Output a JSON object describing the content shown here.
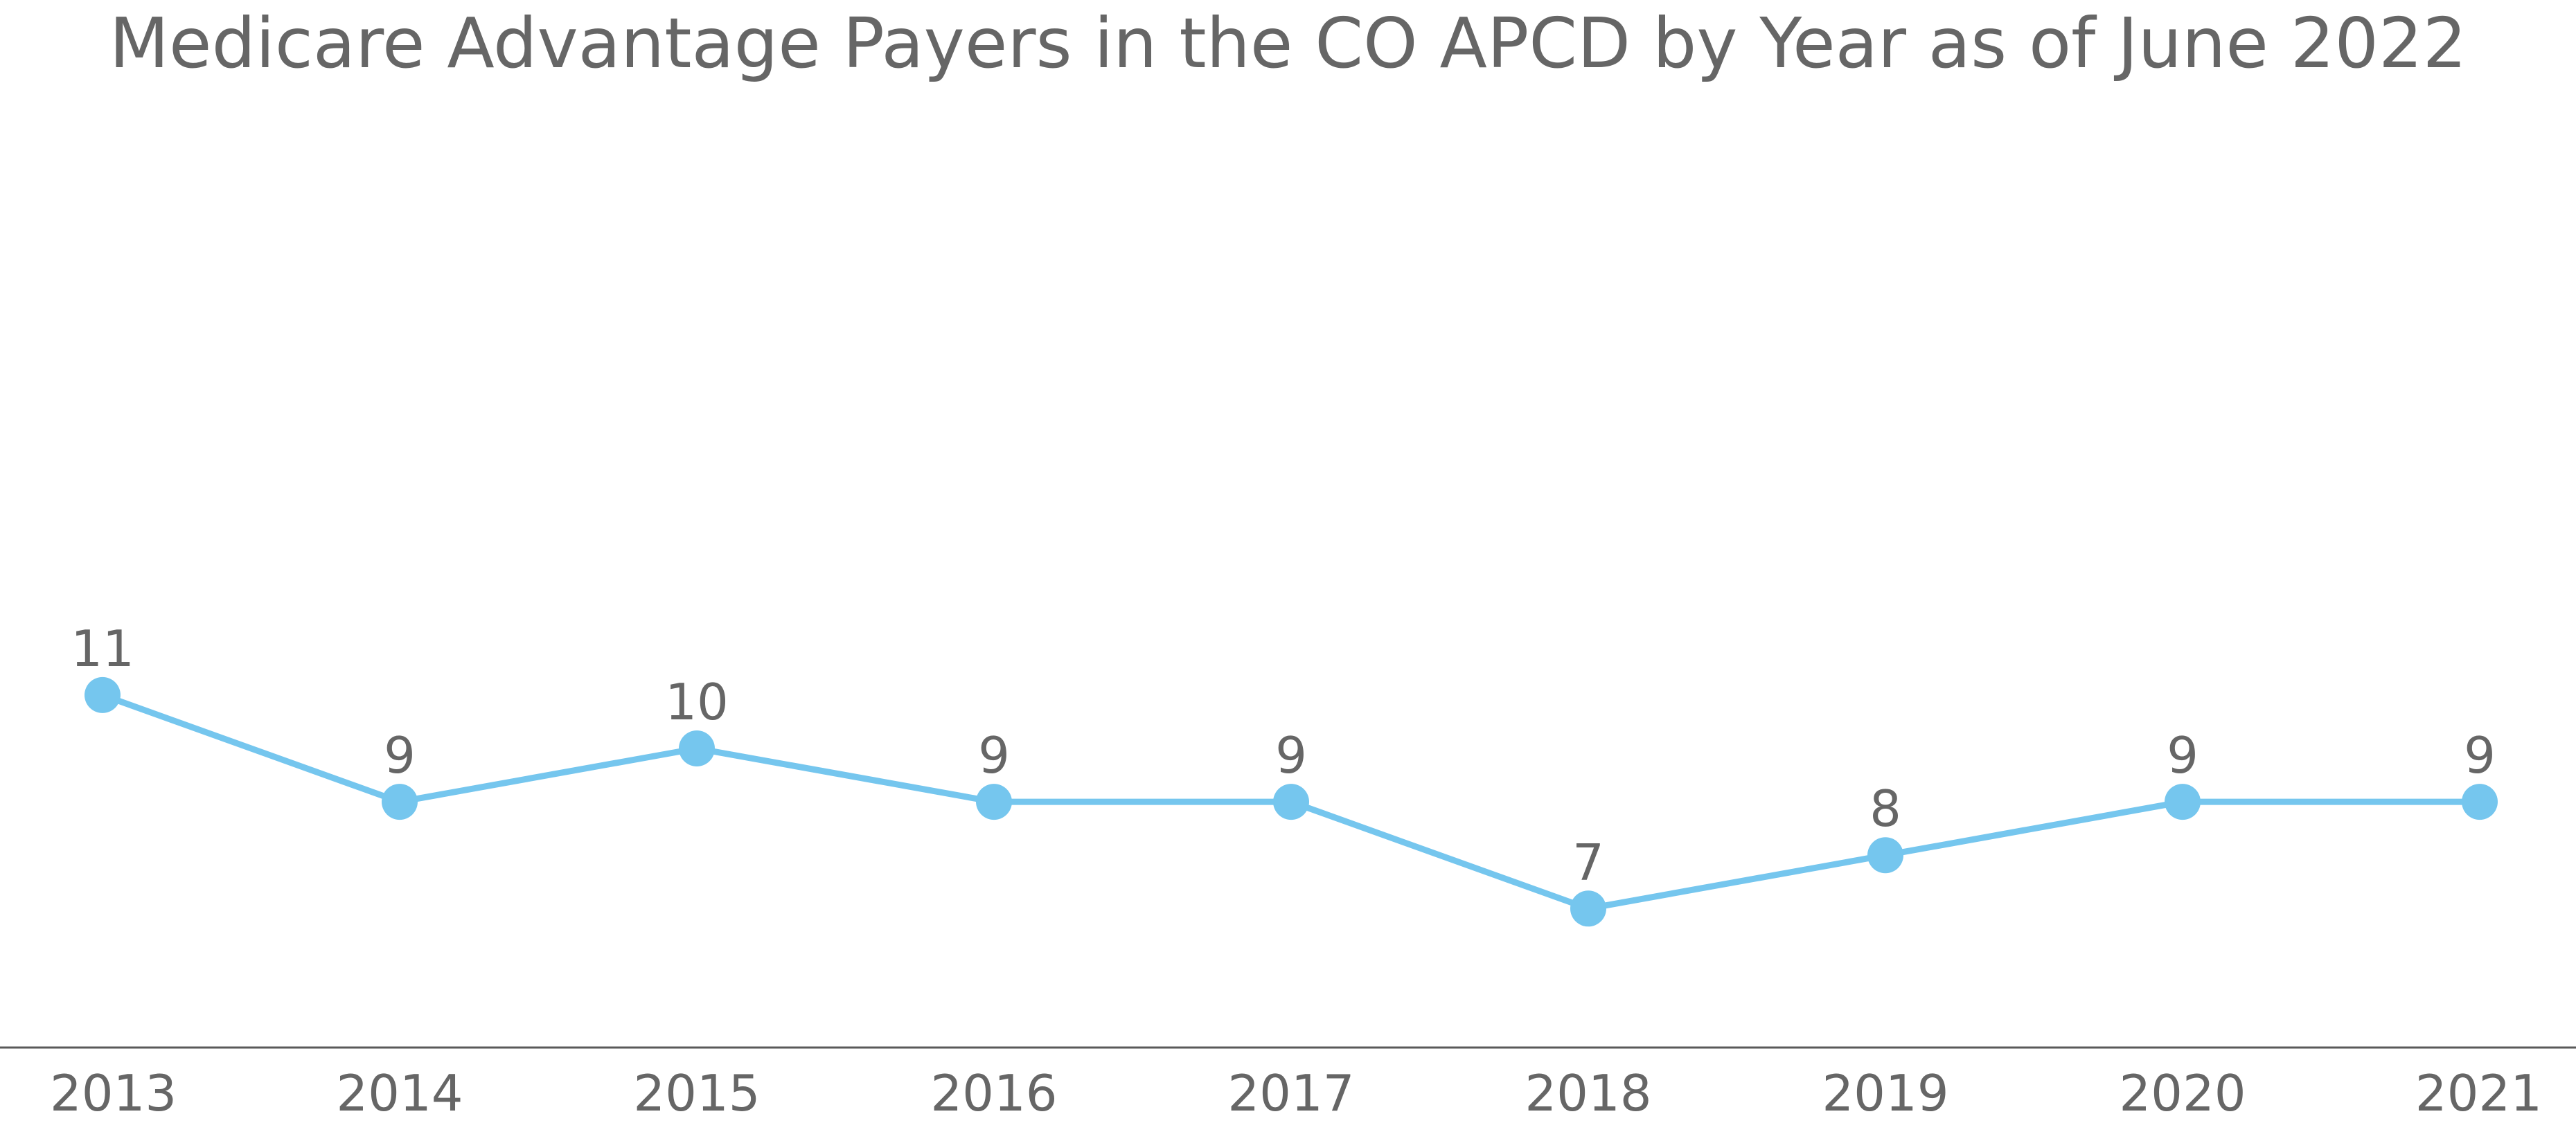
{
  "chart_data": {
    "type": "line",
    "title": "Medicare Advantage Payers in the CO APCD by Year as of June 2022",
    "categories": [
      "2013",
      "2014",
      "2015",
      "2016",
      "2017",
      "2018",
      "2019",
      "2020",
      "2021"
    ],
    "series": [
      {
        "values": [
          11,
          9,
          10,
          9,
          9,
          7,
          8,
          9,
          9
        ],
        "labels": [
          "11",
          "9",
          "10",
          "9",
          "9",
          "7",
          "8",
          "9",
          "9"
        ],
        "color": "#75C6EE"
      }
    ],
    "xlabel": "",
    "ylabel": "",
    "ylim": [
      0,
      20
    ],
    "grid": false,
    "legend": "none",
    "axis_color": "#595959",
    "text_color": "#666666"
  }
}
